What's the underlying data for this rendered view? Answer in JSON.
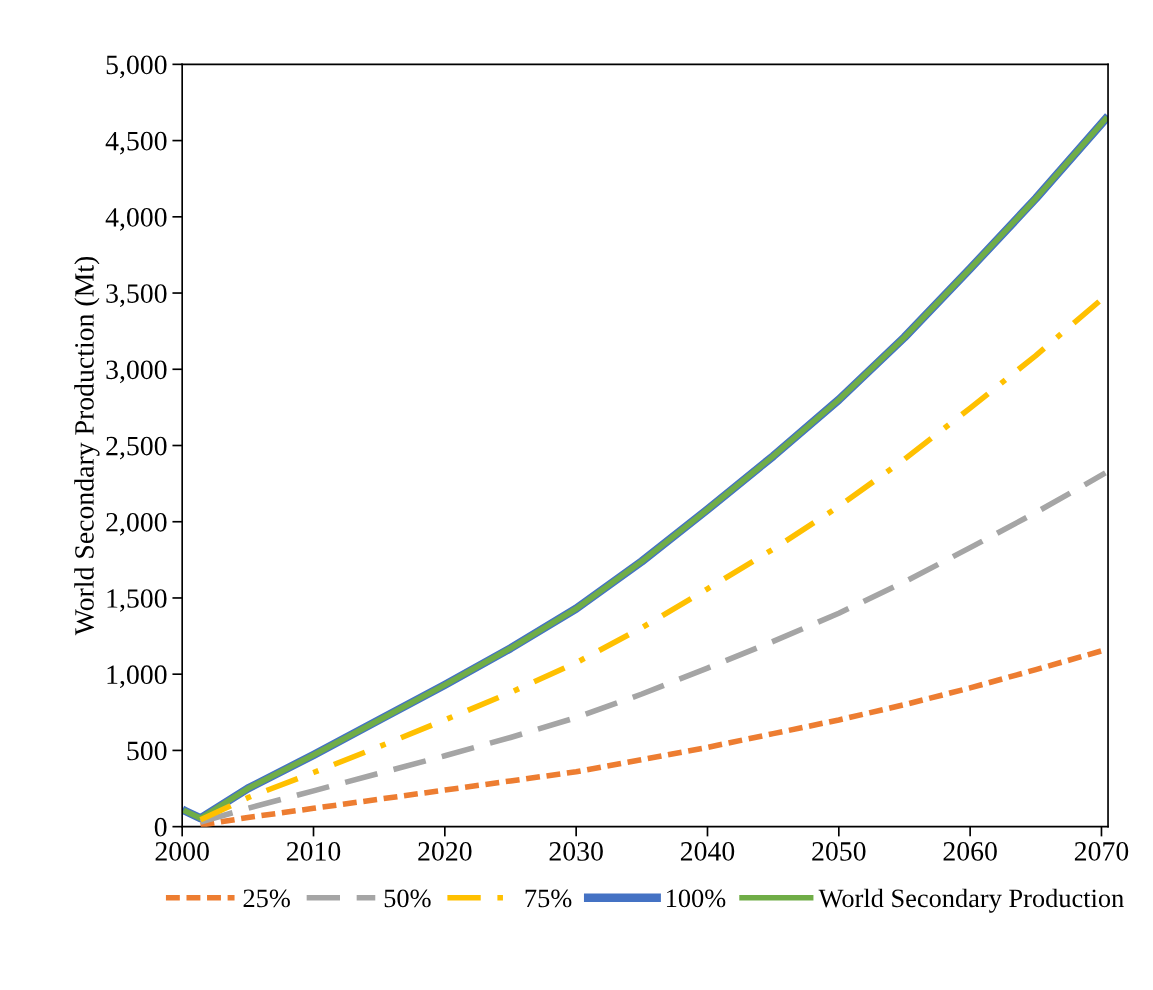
{
  "chart_data": {
    "type": "line",
    "ylabel": "World Secondary Production (Mt)",
    "xlim": [
      2000,
      2070.5
    ],
    "xticks": [
      2000,
      2010,
      2020,
      2030,
      2040,
      2050,
      2060,
      2070
    ],
    "ylim": [
      0,
      5000
    ],
    "yticks": [
      {
        "value": 0,
        "label": "0"
      },
      {
        "value": 500,
        "label": "500"
      },
      {
        "value": 1000,
        "label": "1,000"
      },
      {
        "value": 1500,
        "label": "1,500"
      },
      {
        "value": 2000,
        "label": "2,000"
      },
      {
        "value": 2500,
        "label": "2,500"
      },
      {
        "value": 3000,
        "label": "3,000"
      },
      {
        "value": 3500,
        "label": "3,500"
      },
      {
        "value": 4000,
        "label": "4,000"
      },
      {
        "value": 4500,
        "label": "4,500"
      },
      {
        "value": 5000,
        "label": "5,000"
      }
    ],
    "x": [
      2000.3,
      2001.4,
      2005,
      2010,
      2015,
      2020,
      2025,
      2030,
      2035,
      2040,
      2045,
      2050,
      2055,
      2060,
      2065,
      2070.3
    ],
    "grid": false,
    "legend": "bottom",
    "marker": "none",
    "series": [
      {
        "name": "25%",
        "color": "#ed7d31",
        "line_style": "dashed",
        "values": [
          null,
          10,
          60,
          120,
          180,
          240,
          300,
          360,
          440,
          520,
          610,
          700,
          800,
          910,
          1030,
          1160
        ]
      },
      {
        "name": "50%",
        "color": "#a5a5a5",
        "line_style": "longdash",
        "values": [
          null,
          30,
          120,
          235,
          350,
          465,
          585,
          715,
          870,
          1040,
          1215,
          1400,
          1605,
          1830,
          2060,
          2320
        ]
      },
      {
        "name": "75%",
        "color": "#ffc000",
        "line_style": "dashdot",
        "values": [
          null,
          45,
          190,
          355,
          525,
          700,
          880,
          1075,
          1305,
          1560,
          1820,
          2100,
          2410,
          2745,
          3090,
          3480
        ]
      },
      {
        "name": "100%",
        "color": "#4472c4",
        "line_style": "solid",
        "values": [
          100,
          55,
          250,
          470,
          700,
          930,
          1170,
          1430,
          1740,
          2080,
          2430,
          2800,
          3210,
          3660,
          4120,
          4640
        ]
      },
      {
        "name": "World Secondary Production",
        "color": "#70ad47",
        "line_style": "solid",
        "values": [
          100,
          55,
          250,
          470,
          700,
          930,
          1170,
          1430,
          1740,
          2080,
          2430,
          2800,
          3210,
          3660,
          4120,
          4640
        ]
      }
    ]
  }
}
